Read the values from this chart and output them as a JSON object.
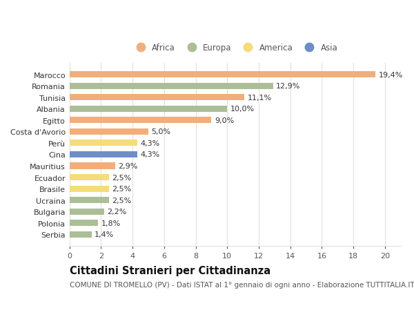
{
  "countries": [
    "Marocco",
    "Romania",
    "Tunisia",
    "Albania",
    "Egitto",
    "Costa d'Avorio",
    "Perù",
    "Cina",
    "Mauritius",
    "Ecuador",
    "Brasile",
    "Ucraina",
    "Bulgaria",
    "Polonia",
    "Serbia"
  ],
  "values": [
    19.4,
    12.9,
    11.1,
    10.0,
    9.0,
    5.0,
    4.3,
    4.3,
    2.9,
    2.5,
    2.5,
    2.5,
    2.2,
    1.8,
    1.4
  ],
  "continents": [
    "Africa",
    "Europa",
    "Africa",
    "Europa",
    "Africa",
    "Africa",
    "America",
    "Asia",
    "Africa",
    "America",
    "America",
    "Europa",
    "Europa",
    "Europa",
    "Europa"
  ],
  "colors": {
    "Africa": "#F2AE7A",
    "Europa": "#ABBE96",
    "America": "#F5DC7A",
    "Asia": "#6E8EC8"
  },
  "title": "Cittadini Stranieri per Cittadinanza",
  "subtitle": "COMUNE DI TROMELLO (PV) - Dati ISTAT al 1° gennaio di ogni anno - Elaborazione TUTTITALIA.IT",
  "xlim": [
    0,
    21
  ],
  "xticks": [
    0,
    2,
    4,
    6,
    8,
    10,
    12,
    14,
    16,
    18,
    20
  ],
  "bg_color": "#ffffff",
  "grid_color": "#e0e0e0",
  "bar_height": 0.55,
  "label_fontsize": 8,
  "axis_fontsize": 8,
  "title_fontsize": 10.5,
  "subtitle_fontsize": 7.5
}
